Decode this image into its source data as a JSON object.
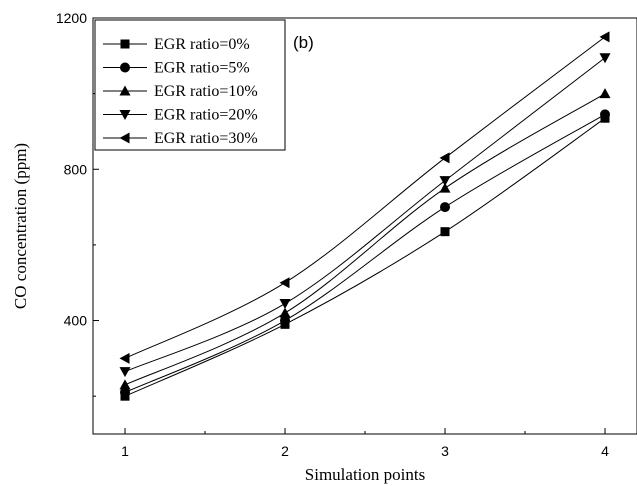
{
  "chart_data": {
    "type": "line",
    "panel_label": "(b)",
    "xlabel": "Simulation points",
    "ylabel": "CO concentration (ppm)",
    "x": [
      1,
      2,
      3,
      4
    ],
    "xlim": [
      0.8,
      4.2
    ],
    "ylim": [
      100,
      1200
    ],
    "x_ticks": [
      "1",
      "2",
      "3",
      "4"
    ],
    "y_ticks": [
      "400",
      "800",
      "1200"
    ],
    "y_tick_values": [
      400,
      800,
      1200
    ],
    "grid": false,
    "legend_position": "top-left",
    "series": [
      {
        "name": "EGR ratio=0%",
        "marker": "square",
        "values": [
          200,
          390,
          635,
          935
        ]
      },
      {
        "name": "EGR ratio=5%",
        "marker": "circle",
        "values": [
          210,
          400,
          700,
          945
        ]
      },
      {
        "name": "EGR ratio=10%",
        "marker": "triangle-up",
        "values": [
          230,
          420,
          750,
          1000
        ]
      },
      {
        "name": "EGR ratio=20%",
        "marker": "triangle-down",
        "values": [
          265,
          445,
          770,
          1095
        ]
      },
      {
        "name": "EGR ratio=30%",
        "marker": "triangle-left",
        "values": [
          300,
          500,
          830,
          1150
        ]
      }
    ]
  }
}
